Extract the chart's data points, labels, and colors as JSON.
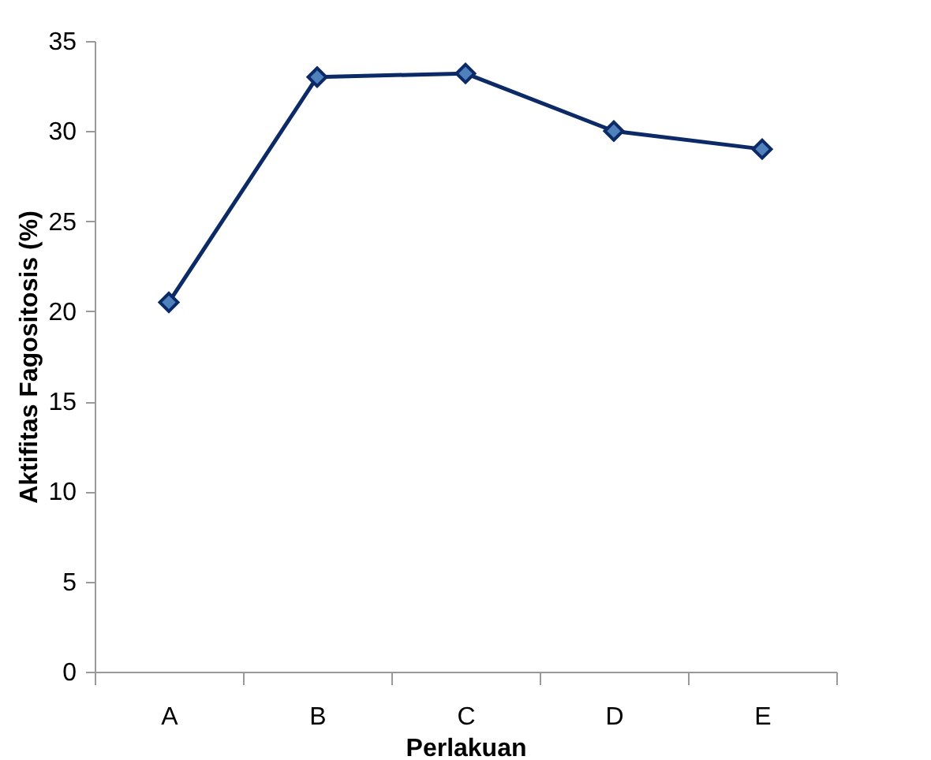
{
  "chart_data": {
    "type": "line",
    "xlabel": "Perlakuan",
    "ylabel": "Aktifitas Fagositosis (%)",
    "categories": [
      "A",
      "B",
      "C",
      "D",
      "E"
    ],
    "series": [
      {
        "color": "#0b2a66",
        "values": [
          20.5,
          33.0,
          33.2,
          30.0,
          29.0
        ]
      }
    ],
    "ylim": [
      0,
      35
    ],
    "yticks": [
      0,
      5,
      10,
      15,
      20,
      25,
      30,
      35
    ],
    "grid": false,
    "legend": false,
    "marker": "diamond",
    "line_style": "solid"
  }
}
